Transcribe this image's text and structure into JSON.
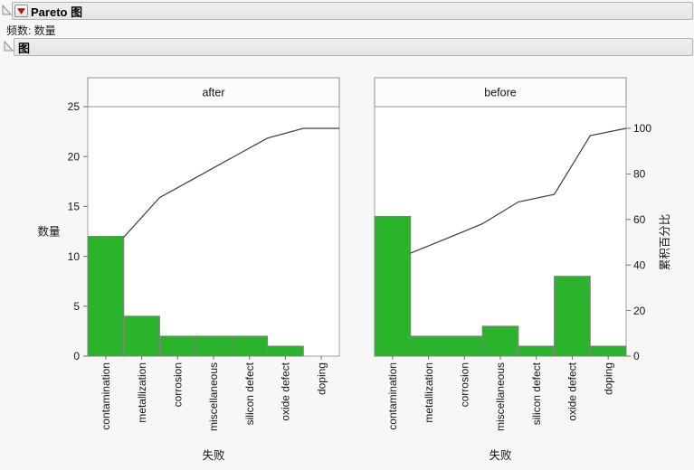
{
  "outline": {
    "title": "Pareto 图",
    "frequency_note": "频数: 数量",
    "plot_title": "图",
    "menu_icon": "red-triangle-icon",
    "disclosure_icon": "disclosure-triangle-icon"
  },
  "chart_data": {
    "type": "bar",
    "subtype": "pareto-with-cumulative-line",
    "categories": [
      "contamination",
      "metallization",
      "corrosion",
      "miscellaneous",
      "silicon defect",
      "oxide defect",
      "doping"
    ],
    "panels": [
      {
        "label": "after",
        "values": [
          12,
          4,
          2,
          2,
          2,
          1,
          0
        ],
        "cumulative_pct": [
          52.2,
          69.6,
          78.3,
          87.0,
          95.7,
          100,
          100
        ]
      },
      {
        "label": "before",
        "values": [
          14,
          2,
          2,
          3,
          1,
          8,
          1
        ],
        "cumulative_pct": [
          45.2,
          51.6,
          58.1,
          67.7,
          71.0,
          96.8,
          100
        ]
      }
    ],
    "xlabel": "失败",
    "ylabel_left": "数量",
    "ylabel_right": "累积百分比",
    "y_left_ticks": [
      0,
      5,
      10,
      15,
      20,
      25
    ],
    "y_right_ticks": [
      0,
      20,
      40,
      60,
      80,
      100
    ],
    "ylim_left": [
      0,
      25
    ],
    "ylim_right": [
      0,
      100
    ],
    "grid": false,
    "legend": "none",
    "bar_color": "#2cb32c",
    "bar_stroke": "#828282",
    "line_color": "#3d3d3d",
    "plot_bg": "#ffffff",
    "frame_color": "#a0a0a0"
  }
}
